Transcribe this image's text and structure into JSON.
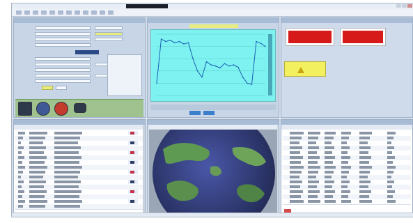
{
  "app": {
    "title": "",
    "accent": "#2c4a86",
    "alarm_color": "#d61a1a",
    "chart_bg": "#7df2f0"
  },
  "toolbar": {
    "items": [
      "tool-1",
      "tool-2",
      "tool-3",
      "tool-4",
      "tool-5",
      "tool-6",
      "tool-7",
      "tool-8",
      "tool-9",
      "tool-10",
      "tool-11",
      "tool-12"
    ]
  },
  "panels": {
    "form": {
      "header": ""
    },
    "chart": {
      "header": ""
    },
    "alarms": {
      "header": "",
      "left_value": "",
      "right_value": ""
    },
    "grid_left": {
      "header": ""
    },
    "map": {
      "header": ""
    },
    "grid_right": {
      "header": ""
    }
  },
  "chart_data": {
    "type": "line",
    "title": "",
    "xlabel": "",
    "ylabel": "",
    "x": [
      0,
      1,
      2,
      3,
      4,
      5,
      6,
      7,
      8,
      9,
      10,
      11,
      12,
      13,
      14,
      15,
      16,
      17,
      18,
      19,
      20,
      21,
      22,
      23,
      24
    ],
    "series": [
      {
        "values": [
          20,
          92,
          88,
          90,
          86,
          88,
          84,
          86,
          60,
          40,
          30,
          55,
          50,
          48,
          45,
          52,
          48,
          50,
          46,
          30,
          20,
          18,
          88,
          85,
          80
        ]
      }
    ],
    "ylim": [
      0,
      100
    ],
    "grid": true,
    "color": "#1a5fb4"
  },
  "icons": {
    "save": "save-icon",
    "record": "record-icon",
    "play": "play-icon",
    "stop": "stop-icon",
    "warning": "warning-icon",
    "globe": "globe-icon"
  }
}
